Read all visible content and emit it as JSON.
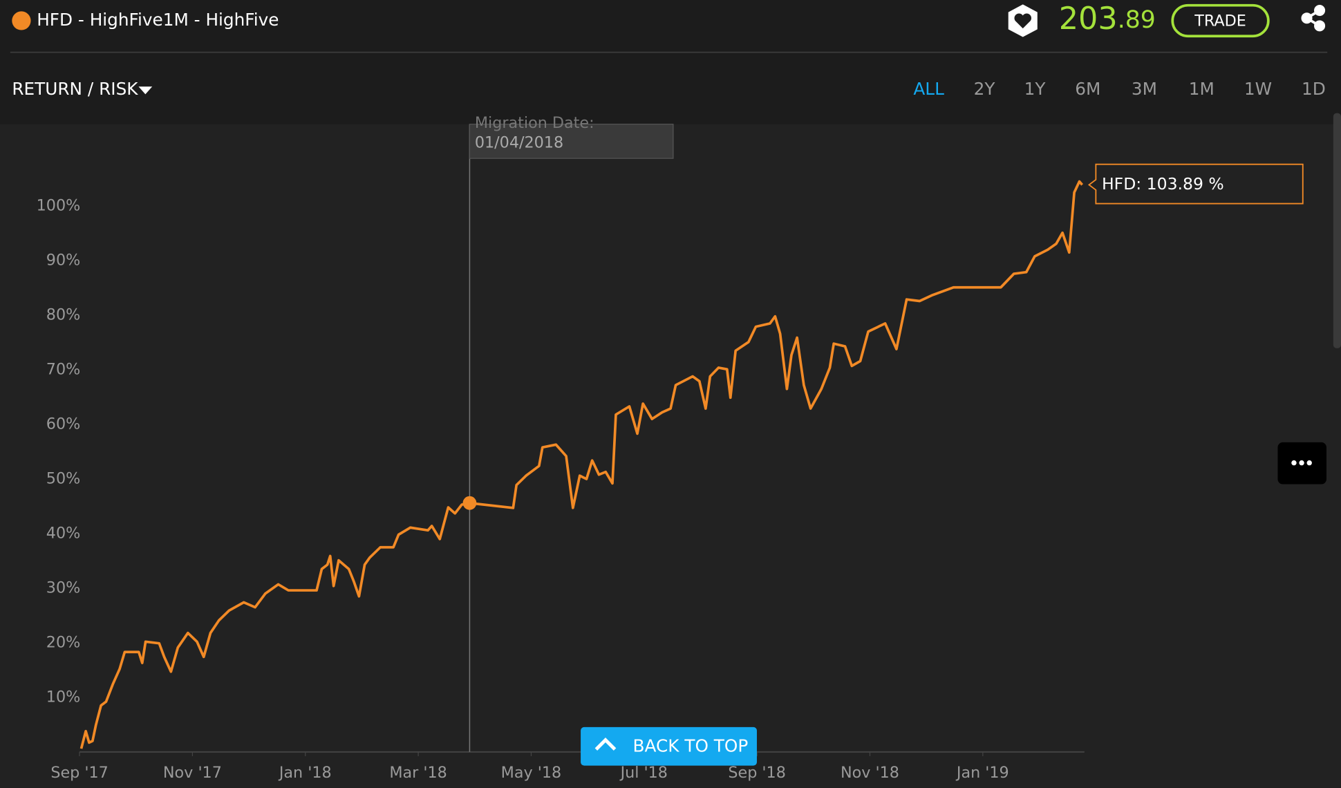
{
  "header": {
    "title": "HFD - HighFive1M - HighFive",
    "price_main": "203",
    "price_decimal": ".89",
    "trade": "TRADE"
  },
  "toolbar": {
    "view": "RETURN / RISK",
    "ranges": [
      "ALL",
      "2Y",
      "1Y",
      "6M",
      "3M",
      "1M",
      "1W",
      "1D"
    ],
    "active": 0
  },
  "back_to_top": "BACK TO TOP",
  "chart_data": {
    "type": "line",
    "x": [
      0.03,
      0.11,
      0.17,
      0.23,
      0.29,
      0.38,
      0.47,
      0.59,
      0.71,
      0.8,
      1.05,
      1.11,
      1.17,
      1.41,
      1.5,
      1.62,
      1.74,
      1.92,
      2.08,
      2.2,
      2.32,
      2.47,
      2.65,
      2.91,
      3.11,
      3.29,
      3.52,
      3.7,
      4.2,
      4.29,
      4.39,
      4.44,
      4.5,
      4.59,
      4.77,
      4.86,
      4.95,
      5.05,
      5.14,
      5.33,
      5.56,
      5.65,
      5.86,
      6.17,
      6.24,
      6.38,
      6.53,
      6.65,
      6.77,
      6.91,
      7.68,
      7.74,
      7.91,
      8.14,
      8.2,
      8.44,
      8.62,
      8.74,
      8.86,
      8.98,
      9.08,
      9.2,
      9.32,
      9.44,
      9.5,
      9.74,
      9.88,
      9.98,
      10.14,
      10.32,
      10.47,
      10.56,
      10.86,
      10.98,
      11.09,
      11.17,
      11.32,
      11.47,
      11.53,
      11.62,
      11.85,
      11.98,
      12.23,
      12.32,
      12.41,
      12.53,
      12.61,
      12.71,
      12.83,
      12.95,
      13.14,
      13.29,
      13.36,
      13.56,
      13.68,
      13.83,
      13.97,
      14.27,
      14.47,
      14.65,
      14.88,
      15.11,
      15.48,
      16.32,
      16.55,
      16.77,
      16.92,
      17.15,
      17.3,
      17.41,
      17.53,
      17.62,
      17.71,
      17.76
    ],
    "series": [
      {
        "color": "#f28a26",
        "values": [
          0.6,
          3.8,
          1.7,
          2.0,
          4.9,
          8.5,
          9.2,
          12.4,
          15.2,
          18.3,
          18.3,
          16.3,
          20.2,
          19.9,
          17.4,
          14.7,
          19.1,
          21.8,
          20.2,
          17.4,
          21.8,
          24.1,
          25.9,
          27.4,
          26.5,
          29.0,
          30.7,
          29.6,
          29.6,
          33.5,
          34.3,
          35.9,
          30.4,
          35.1,
          33.5,
          31.2,
          28.5,
          34.3,
          35.6,
          37.5,
          37.5,
          39.8,
          41.1,
          40.6,
          41.4,
          39.0,
          44.8,
          43.7,
          45.3,
          45.6,
          44.7,
          48.9,
          50.6,
          52.4,
          55.8,
          56.3,
          54.2,
          44.7,
          50.6,
          50.0,
          53.4,
          50.8,
          51.3,
          49.2,
          61.8,
          63.3,
          58.3,
          63.8,
          61.0,
          62.2,
          62.9,
          67.2,
          68.8,
          67.9,
          62.9,
          68.8,
          70.4,
          70.1,
          64.9,
          73.5,
          75.1,
          77.9,
          78.5,
          79.8,
          76.6,
          66.5,
          72.7,
          75.9,
          67.2,
          62.9,
          66.5,
          70.4,
          74.8,
          74.3,
          70.7,
          71.6,
          77.0,
          78.5,
          73.8,
          82.9,
          82.6,
          83.7,
          85.1,
          85.1,
          87.6,
          87.9,
          90.8,
          92.0,
          93.1,
          95.1,
          91.5,
          102.5,
          104.5,
          103.89
        ]
      }
    ],
    "xlim": [
      0,
      17.8
    ],
    "ylim": [
      0,
      115
    ],
    "xticks": [
      {
        "value": 0,
        "label": "Sep '17"
      },
      {
        "value": 2,
        "label": "Nov '17"
      },
      {
        "value": 4,
        "label": "Jan '18"
      },
      {
        "value": 6,
        "label": "Mar '18"
      },
      {
        "value": 8,
        "label": "May '18"
      },
      {
        "value": 10,
        "label": "Jul '18"
      },
      {
        "value": 12,
        "label": "Sep '18"
      },
      {
        "value": 14,
        "label": "Nov '18"
      },
      {
        "value": 16,
        "label": "Jan '19"
      }
    ],
    "yticks": [
      {
        "value": 10,
        "label": "10%"
      },
      {
        "value": 20,
        "label": "20%"
      },
      {
        "value": 30,
        "label": "30%"
      },
      {
        "value": 40,
        "label": "40%"
      },
      {
        "value": 50,
        "label": "50%"
      },
      {
        "value": 60,
        "label": "60%"
      },
      {
        "value": 70,
        "label": "70%"
      },
      {
        "value": 80,
        "label": "80%"
      },
      {
        "value": 90,
        "label": "90%"
      },
      {
        "value": 100,
        "label": "100%"
      }
    ],
    "migration": {
      "x": 6.91,
      "label": "Migration Date:",
      "date": "01/04/2018"
    },
    "tooltip": "HFD: 103.89 %"
  }
}
